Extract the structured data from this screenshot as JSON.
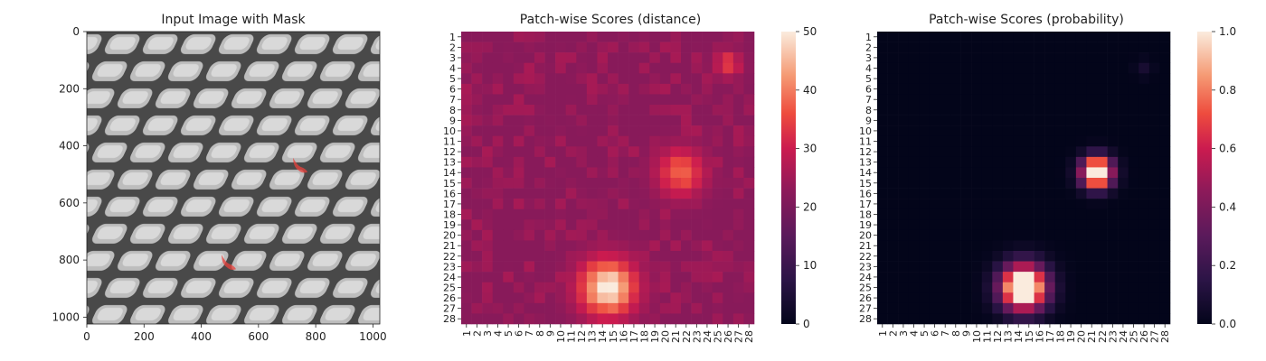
{
  "chart_data": [
    {
      "type": "image",
      "title": "Input Image with Mask",
      "xlim": [
        0,
        1024
      ],
      "ylim": [
        1024,
        0
      ],
      "xticks": [
        "0",
        "200",
        "400",
        "600",
        "800",
        "1000"
      ],
      "yticks": [
        "0",
        "200",
        "400",
        "600",
        "800",
        "1000"
      ],
      "image_description": "grayscale woven mesh texture",
      "mask_regions": [
        {
          "x": 740,
          "y": 470
        },
        {
          "x": 490,
          "y": 810
        }
      ],
      "mask_color": "#e8413c"
    },
    {
      "type": "heatmap",
      "title": "Patch-wise Scores (distance)",
      "rows": 28,
      "cols": 28,
      "tick_labels": [
        "1",
        "2",
        "3",
        "4",
        "5",
        "6",
        "7",
        "8",
        "9",
        "10",
        "11",
        "12",
        "13",
        "14",
        "15",
        "16",
        "17",
        "18",
        "19",
        "20",
        "21",
        "22",
        "23",
        "24",
        "25",
        "26",
        "27",
        "28"
      ],
      "colorbar": {
        "range": [
          0,
          50
        ],
        "ticks": [
          "0",
          "10",
          "20",
          "30",
          "40",
          "50"
        ]
      },
      "background_value": 22,
      "hotspots": [
        {
          "row": 14,
          "col": 21.5,
          "peak": 38,
          "sigma": 1.6
        },
        {
          "row": 25,
          "col": 14.5,
          "peak": 50,
          "sigma": 1.9
        },
        {
          "row": 3.6,
          "col": 26,
          "peak": 34,
          "sigma": 0.9
        }
      ]
    },
    {
      "type": "heatmap",
      "title": "Patch-wise Scores (probability)",
      "rows": 28,
      "cols": 28,
      "tick_labels": [
        "1",
        "2",
        "3",
        "4",
        "5",
        "6",
        "7",
        "8",
        "9",
        "10",
        "11",
        "12",
        "13",
        "14",
        "15",
        "16",
        "17",
        "18",
        "19",
        "20",
        "21",
        "22",
        "23",
        "24",
        "25",
        "26",
        "27",
        "28"
      ],
      "colorbar": {
        "range": [
          0.0,
          1.0
        ],
        "ticks": [
          "0.0",
          "0.2",
          "0.4",
          "0.6",
          "0.8",
          "1.0"
        ]
      },
      "background_value": 0.0,
      "hotspots": [
        {
          "row": 14,
          "col": 21.5,
          "peak": 1.0,
          "sigma": 1.0
        },
        {
          "row": 25,
          "col": 14.5,
          "peak": 1.0,
          "sigma": 1.5
        },
        {
          "row": 4,
          "col": 26,
          "peak": 0.08,
          "sigma": 0.6
        }
      ]
    }
  ]
}
